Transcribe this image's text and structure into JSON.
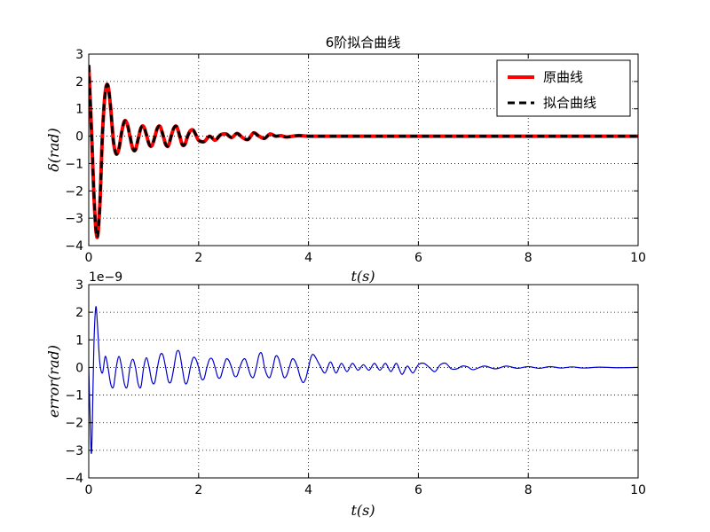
{
  "chart_data": [
    {
      "type": "line",
      "title": "6阶拟合曲线",
      "xlabel": "t(s)",
      "ylabel": "δ(rad)",
      "xlim": [
        0,
        10
      ],
      "ylim": [
        -4,
        3
      ],
      "xticks": [
        "0",
        "2",
        "4",
        "6",
        "8",
        "10"
      ],
      "yticks": [
        "−4",
        "−3",
        "−2",
        "−1",
        "0",
        "1",
        "2",
        "3"
      ],
      "grid": true,
      "legend_position": "top-right",
      "series": [
        {
          "name": "原曲线",
          "color": "#ff0000",
          "style": "solid",
          "x": [
            0,
            0.05,
            0.1,
            0.15,
            0.2,
            0.25,
            0.3,
            0.35,
            0.4,
            0.45,
            0.5,
            0.55,
            0.6,
            0.65,
            0.7,
            0.75,
            0.8,
            0.85,
            0.9,
            0.95,
            1.0,
            1.05,
            1.1,
            1.15,
            1.2,
            1.25,
            1.3,
            1.35,
            1.4,
            1.45,
            1.5,
            1.55,
            1.6,
            1.65,
            1.7,
            1.75,
            1.8,
            1.85,
            1.9,
            1.95,
            2.0,
            2.1,
            2.2,
            2.3,
            2.4,
            2.5,
            2.6,
            2.7,
            2.8,
            2.9,
            3.0,
            3.1,
            3.2,
            3.3,
            3.4,
            3.5,
            3.6,
            3.8,
            4.0,
            4.2,
            4.4,
            4.6,
            5.0,
            6.0,
            7.0,
            8.0,
            9.0,
            10.0
          ],
          "y": [
            2.6,
            0.2,
            -2.4,
            -3.7,
            -2.6,
            0.1,
            1.6,
            1.85,
            1.0,
            -0.2,
            -0.65,
            -0.45,
            0.15,
            0.55,
            0.45,
            0.0,
            -0.45,
            -0.5,
            -0.1,
            0.3,
            0.35,
            0.05,
            -0.3,
            -0.35,
            -0.05,
            0.3,
            0.35,
            0.05,
            -0.3,
            -0.35,
            0.0,
            0.3,
            0.35,
            0.05,
            -0.3,
            -0.3,
            0.0,
            0.2,
            0.22,
            0.05,
            -0.15,
            -0.2,
            0.0,
            -0.15,
            0.05,
            0.08,
            -0.05,
            0.1,
            -0.05,
            -0.12,
            0.12,
            0.0,
            -0.08,
            0.08,
            0.0,
            0.02,
            -0.03,
            0.02,
            0.0,
            0.0,
            0.0,
            0.0,
            0.0,
            0.0,
            0.0,
            0.0,
            0.0,
            0.0
          ]
        },
        {
          "name": "拟合曲线",
          "color": "#000000",
          "style": "dashed",
          "x": [
            0,
            0.05,
            0.1,
            0.15,
            0.2,
            0.25,
            0.3,
            0.35,
            0.4,
            0.45,
            0.5,
            0.55,
            0.6,
            0.65,
            0.7,
            0.75,
            0.8,
            0.85,
            0.9,
            0.95,
            1.0,
            1.05,
            1.1,
            1.15,
            1.2,
            1.25,
            1.3,
            1.35,
            1.4,
            1.45,
            1.5,
            1.55,
            1.6,
            1.65,
            1.7,
            1.75,
            1.8,
            1.85,
            1.9,
            1.95,
            2.0,
            2.1,
            2.2,
            2.3,
            2.4,
            2.5,
            2.6,
            2.7,
            2.8,
            2.9,
            3.0,
            3.1,
            3.2,
            3.3,
            3.4,
            3.5,
            3.6,
            3.8,
            4.0,
            4.2,
            4.4,
            4.6,
            5.0,
            6.0,
            7.0,
            8.0,
            9.0,
            10.0
          ],
          "y": [
            2.6,
            0.2,
            -2.4,
            -3.7,
            -2.6,
            0.1,
            1.6,
            1.85,
            1.0,
            -0.2,
            -0.65,
            -0.45,
            0.15,
            0.55,
            0.45,
            0.0,
            -0.45,
            -0.5,
            -0.1,
            0.3,
            0.35,
            0.05,
            -0.3,
            -0.35,
            -0.05,
            0.3,
            0.35,
            0.05,
            -0.3,
            -0.35,
            0.0,
            0.3,
            0.35,
            0.05,
            -0.3,
            -0.3,
            0.0,
            0.2,
            0.22,
            0.05,
            -0.15,
            -0.2,
            0.0,
            -0.15,
            0.05,
            0.08,
            -0.05,
            0.1,
            -0.05,
            -0.12,
            0.12,
            0.0,
            -0.08,
            0.08,
            0.0,
            0.02,
            -0.03,
            0.02,
            0.0,
            0.0,
            0.0,
            0.0,
            0.0,
            0.0,
            0.0,
            0.0,
            0.0,
            0.0
          ]
        }
      ]
    },
    {
      "type": "line",
      "title": "",
      "xlabel": "t(s)",
      "ylabel": "error(rad)",
      "xlim": [
        0,
        10
      ],
      "ylim": [
        -4,
        3
      ],
      "y_offset_label": "1e−9",
      "xticks": [
        "0",
        "2",
        "4",
        "6",
        "8",
        "10"
      ],
      "yticks": [
        "−4",
        "−3",
        "−2",
        "−1",
        "0",
        "1",
        "2",
        "3"
      ],
      "grid": true,
      "series": [
        {
          "color": "#0000cc",
          "style": "solid",
          "x": [
            0,
            0.02,
            0.05,
            0.08,
            0.1,
            0.13,
            0.16,
            0.2,
            0.25,
            0.3,
            0.35,
            0.4,
            0.45,
            0.5,
            0.55,
            0.6,
            0.65,
            0.7,
            0.75,
            0.8,
            0.85,
            0.9,
            0.95,
            1.0,
            1.05,
            1.1,
            1.15,
            1.2,
            1.25,
            1.3,
            1.35,
            1.4,
            1.45,
            1.5,
            1.55,
            1.6,
            1.65,
            1.7,
            1.75,
            1.8,
            1.85,
            1.9,
            1.95,
            2.0,
            2.05,
            2.1,
            2.15,
            2.2,
            2.25,
            2.3,
            2.35,
            2.4,
            2.45,
            2.5,
            2.55,
            2.6,
            2.65,
            2.7,
            2.75,
            2.8,
            2.85,
            2.9,
            2.95,
            3.0,
            3.05,
            3.1,
            3.15,
            3.2,
            3.25,
            3.3,
            3.35,
            3.4,
            3.45,
            3.5,
            3.55,
            3.6,
            3.65,
            3.7,
            3.75,
            3.8,
            3.85,
            3.9,
            3.95,
            4.0,
            4.05,
            4.1,
            4.2,
            4.3,
            4.4,
            4.5,
            4.6,
            4.7,
            4.8,
            4.9,
            5.0,
            5.1,
            5.2,
            5.3,
            5.4,
            5.5,
            5.6,
            5.7,
            5.8,
            5.9,
            6.0,
            6.1,
            6.2,
            6.3,
            6.4,
            6.5,
            6.6,
            6.7,
            6.8,
            6.9,
            7.0,
            7.2,
            7.4,
            7.6,
            7.8,
            8.0,
            8.2,
            8.4,
            8.6,
            8.8,
            9.0,
            9.3,
            9.6,
            10.0
          ],
          "y": [
            0.0,
            -1.5,
            -3.1,
            -0.5,
            1.2,
            2.2,
            1.5,
            0.2,
            -0.2,
            0.4,
            0.0,
            -0.6,
            -0.7,
            0.0,
            0.4,
            0.0,
            -0.6,
            -0.7,
            0.0,
            0.3,
            0.0,
            -0.6,
            -0.7,
            0.0,
            0.35,
            0.0,
            -0.5,
            -0.55,
            0.0,
            0.45,
            0.45,
            0.0,
            -0.5,
            -0.5,
            0.0,
            0.55,
            0.55,
            0.0,
            -0.55,
            -0.5,
            0.0,
            0.35,
            0.3,
            0.0,
            -0.4,
            -0.4,
            0.0,
            0.3,
            0.3,
            0.0,
            -0.35,
            -0.35,
            0.0,
            0.3,
            0.25,
            0.0,
            -0.3,
            -0.3,
            0.0,
            0.25,
            0.3,
            0.0,
            -0.3,
            -0.35,
            0.0,
            0.45,
            0.5,
            0.0,
            -0.3,
            -0.35,
            0.0,
            0.4,
            0.35,
            0.0,
            -0.35,
            -0.3,
            0.0,
            0.3,
            0.25,
            0.0,
            -0.35,
            -0.55,
            -0.4,
            0.0,
            0.4,
            0.45,
            0.1,
            -0.2,
            0.2,
            -0.2,
            0.15,
            -0.15,
            0.15,
            -0.1,
            0.1,
            -0.1,
            0.15,
            -0.1,
            0.15,
            -0.15,
            0.15,
            -0.25,
            0.05,
            -0.2,
            0.1,
            0.15,
            0.0,
            -0.15,
            0.1,
            0.15,
            -0.05,
            -0.05,
            0.05,
            0.02,
            -0.08,
            0.05,
            -0.05,
            0.05,
            -0.03,
            0.03,
            -0.03,
            0.03,
            -0.02,
            0.02,
            -0.02,
            0.01,
            -0.01,
            0.0
          ]
        }
      ]
    }
  ]
}
